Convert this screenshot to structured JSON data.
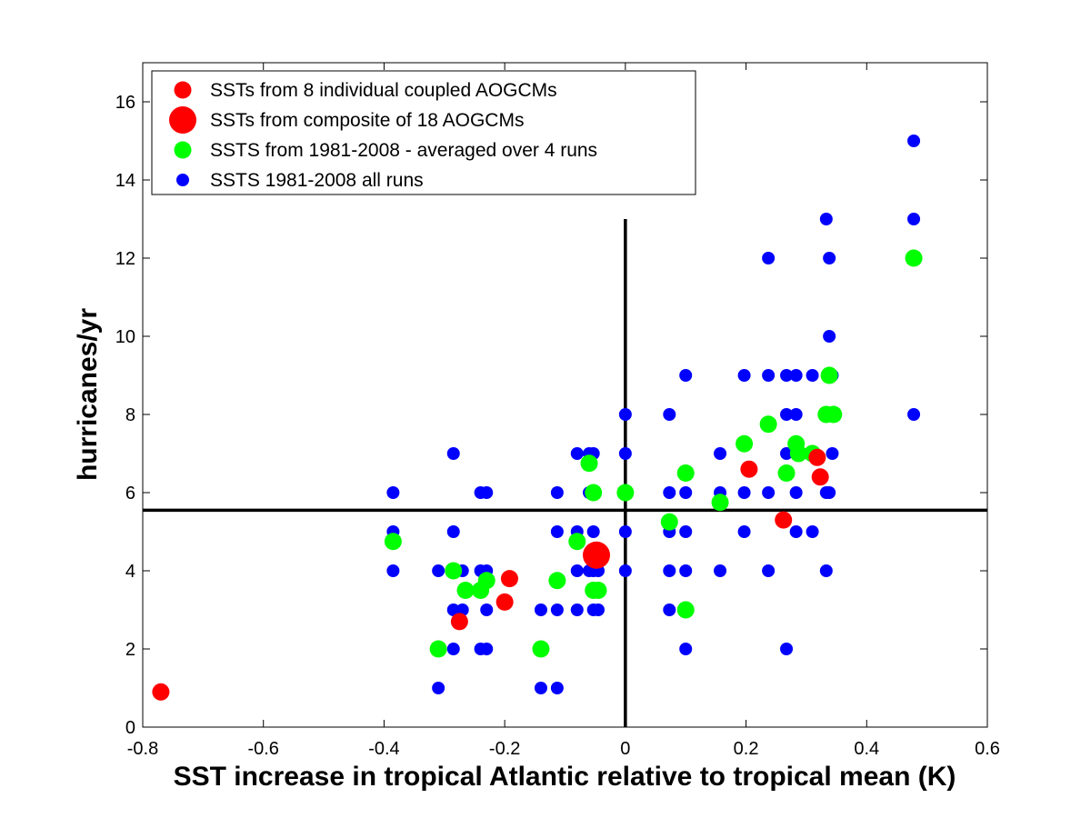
{
  "chart_data": {
    "type": "scatter",
    "title": "",
    "xlabel": "SST increase in tropical Atlantic relative to tropical mean (K)",
    "ylabel": "hurricanes/yr",
    "xlim": [
      -0.8,
      0.6
    ],
    "ylim": [
      0,
      17
    ],
    "x_ticks": [
      "-0.8",
      "-0.6",
      "-0.4",
      "-0.2",
      "0",
      "0.2",
      "0.4",
      "0.6"
    ],
    "y_ticks": [
      "0",
      "2",
      "4",
      "6",
      "8",
      "10",
      "12",
      "14",
      "16"
    ],
    "grid": false,
    "legend_position": "top-left",
    "reference_lines": {
      "vertical_x": 0,
      "vertical_y_range": [
        0,
        13
      ],
      "horizontal_y": 5.55
    },
    "series": [
      {
        "name": "SSTS 1981-2008 all runs",
        "color": "#0000ff",
        "marker": "small-dot",
        "points": [
          [
            -0.385,
            6
          ],
          [
            -0.385,
            5
          ],
          [
            -0.385,
            4
          ],
          [
            -0.31,
            4
          ],
          [
            -0.31,
            2
          ],
          [
            -0.31,
            1
          ],
          [
            -0.285,
            7
          ],
          [
            -0.285,
            5
          ],
          [
            -0.285,
            4
          ],
          [
            -0.285,
            3
          ],
          [
            -0.285,
            2
          ],
          [
            -0.27,
            4
          ],
          [
            -0.27,
            3
          ],
          [
            -0.24,
            6
          ],
          [
            -0.24,
            4
          ],
          [
            -0.24,
            2
          ],
          [
            -0.23,
            6
          ],
          [
            -0.23,
            4
          ],
          [
            -0.23,
            3
          ],
          [
            -0.23,
            2
          ],
          [
            -0.14,
            3
          ],
          [
            -0.14,
            1
          ],
          [
            -0.113,
            6
          ],
          [
            -0.113,
            5
          ],
          [
            -0.113,
            3
          ],
          [
            -0.113,
            1
          ],
          [
            -0.08,
            7
          ],
          [
            -0.08,
            5
          ],
          [
            -0.08,
            4
          ],
          [
            -0.08,
            3
          ],
          [
            -0.06,
            7
          ],
          [
            -0.06,
            6
          ],
          [
            -0.06,
            4
          ],
          [
            -0.053,
            7
          ],
          [
            -0.053,
            6
          ],
          [
            -0.053,
            5
          ],
          [
            -0.053,
            4
          ],
          [
            -0.053,
            3
          ],
          [
            -0.045,
            4
          ],
          [
            -0.045,
            3
          ],
          [
            0,
            8
          ],
          [
            0,
            7
          ],
          [
            0,
            6
          ],
          [
            0,
            5
          ],
          [
            0,
            4
          ],
          [
            0.073,
            8
          ],
          [
            0.073,
            6
          ],
          [
            0.073,
            5
          ],
          [
            0.073,
            4
          ],
          [
            0.073,
            3
          ],
          [
            0.1,
            9
          ],
          [
            0.1,
            6
          ],
          [
            0.1,
            5
          ],
          [
            0.1,
            4
          ],
          [
            0.1,
            2
          ],
          [
            0.157,
            7
          ],
          [
            0.157,
            6
          ],
          [
            0.157,
            4
          ],
          [
            0.197,
            9
          ],
          [
            0.197,
            6
          ],
          [
            0.197,
            5
          ],
          [
            0.237,
            12
          ],
          [
            0.237,
            9
          ],
          [
            0.237,
            6
          ],
          [
            0.237,
            4
          ],
          [
            0.267,
            9
          ],
          [
            0.267,
            8
          ],
          [
            0.267,
            7
          ],
          [
            0.267,
            2
          ],
          [
            0.283,
            9
          ],
          [
            0.283,
            8
          ],
          [
            0.283,
            6
          ],
          [
            0.283,
            5
          ],
          [
            0.31,
            9
          ],
          [
            0.31,
            5
          ],
          [
            0.333,
            13
          ],
          [
            0.333,
            6
          ],
          [
            0.333,
            4
          ],
          [
            0.338,
            12
          ],
          [
            0.338,
            10
          ],
          [
            0.338,
            6
          ],
          [
            0.343,
            9
          ],
          [
            0.343,
            7
          ],
          [
            0.478,
            15
          ],
          [
            0.478,
            13
          ],
          [
            0.478,
            8
          ]
        ]
      },
      {
        "name": "SSTS from 1981-2008 - averaged over 4 runs",
        "color": "#00ff00",
        "marker": "medium-dot",
        "points": [
          [
            -0.385,
            4.75
          ],
          [
            -0.31,
            2
          ],
          [
            -0.285,
            4
          ],
          [
            -0.265,
            3.5
          ],
          [
            -0.24,
            3.5
          ],
          [
            -0.23,
            3.75
          ],
          [
            -0.14,
            2
          ],
          [
            -0.113,
            3.75
          ],
          [
            -0.08,
            4.75
          ],
          [
            -0.06,
            6.75
          ],
          [
            -0.053,
            6
          ],
          [
            -0.053,
            3.5
          ],
          [
            -0.045,
            3.5
          ],
          [
            0,
            6
          ],
          [
            0.073,
            5.25
          ],
          [
            0.1,
            6.5
          ],
          [
            0.1,
            3
          ],
          [
            0.157,
            5.75
          ],
          [
            0.197,
            7.25
          ],
          [
            0.237,
            7.75
          ],
          [
            0.267,
            6.5
          ],
          [
            0.283,
            7.25
          ],
          [
            0.287,
            7
          ],
          [
            0.31,
            7
          ],
          [
            0.333,
            8
          ],
          [
            0.338,
            9
          ],
          [
            0.345,
            8
          ],
          [
            0.478,
            12
          ]
        ]
      },
      {
        "name": "SSTs from 8 individual coupled AOGCMs",
        "color": "#ff0000",
        "marker": "medium-dot",
        "points": [
          [
            -0.77,
            0.9
          ],
          [
            -0.275,
            2.7
          ],
          [
            -0.2,
            3.2
          ],
          [
            -0.192,
            3.8
          ],
          [
            0.205,
            6.6
          ],
          [
            0.262,
            5.3
          ],
          [
            0.318,
            6.9
          ],
          [
            0.323,
            6.4
          ]
        ]
      },
      {
        "name": "SSTs from composite of 18 AOGCMs",
        "color": "#ff0000",
        "marker": "large-dot",
        "points": [
          [
            -0.048,
            4.4
          ]
        ]
      }
    ],
    "legend": [
      {
        "label": "SSTs from 8 individual coupled AOGCMs",
        "color": "#ff0000",
        "marker": "medium-dot"
      },
      {
        "label": "SSTs from composite of 18 AOGCMs",
        "color": "#ff0000",
        "marker": "large-dot"
      },
      {
        "label": "SSTS from 1981-2008 - averaged over 4 runs",
        "color": "#00ff00",
        "marker": "medium-dot"
      },
      {
        "label": "SSTS 1981-2008 all runs",
        "color": "#0000ff",
        "marker": "small-dot"
      }
    ]
  }
}
